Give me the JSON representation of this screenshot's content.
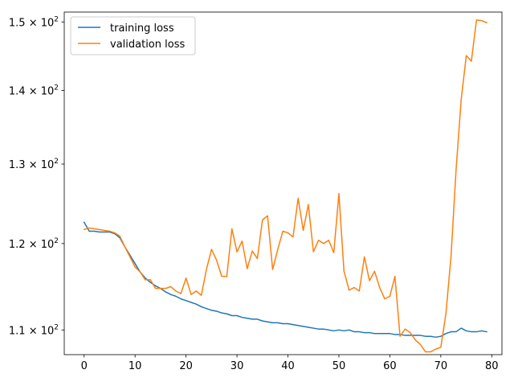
{
  "chart_data": {
    "type": "line",
    "title": "",
    "xlabel": "",
    "ylabel": "",
    "yscale": "log",
    "xlim": [
      -3.9,
      82
    ],
    "ylim": [
      107.3,
      151.5
    ],
    "grid": false,
    "legend_position": "top-left",
    "x_ticks": [
      0,
      10,
      20,
      30,
      40,
      50,
      60,
      70,
      80
    ],
    "x_tick_labels": [
      "0",
      "10",
      "20",
      "30",
      "40",
      "50",
      "60",
      "70",
      "80"
    ],
    "y_ticks": [
      110,
      120,
      130,
      140,
      150
    ],
    "y_tick_labels": [
      {
        "base": "1.1 × 10",
        "exp": "2"
      },
      {
        "base": "1.2 × 10",
        "exp": "2"
      },
      {
        "base": "1.3 × 10",
        "exp": "2"
      },
      {
        "base": "1.4 × 10",
        "exp": "2"
      },
      {
        "base": "1.5 × 10",
        "exp": "2"
      }
    ],
    "series": [
      {
        "name": "training loss",
        "color": "#1f77b4",
        "values": [
          122.6,
          121.5,
          121.5,
          121.4,
          121.4,
          121.4,
          121.2,
          120.7,
          119.6,
          118.6,
          117.6,
          116.6,
          115.9,
          115.4,
          115.0,
          114.7,
          114.3,
          114.0,
          113.8,
          113.5,
          113.3,
          113.1,
          112.9,
          112.6,
          112.4,
          112.2,
          112.1,
          111.9,
          111.8,
          111.6,
          111.6,
          111.4,
          111.3,
          111.2,
          111.2,
          111.0,
          110.9,
          110.8,
          110.8,
          110.7,
          110.7,
          110.6,
          110.5,
          110.4,
          110.3,
          110.2,
          110.1,
          110.1,
          110.0,
          109.9,
          110.0,
          109.9,
          110.0,
          109.8,
          109.8,
          109.7,
          109.7,
          109.6,
          109.6,
          109.6,
          109.6,
          109.5,
          109.5,
          109.4,
          109.4,
          109.4,
          109.4,
          109.3,
          109.3,
          109.2,
          109.3,
          109.6,
          109.8,
          109.8,
          110.2,
          109.9,
          109.8,
          109.8,
          109.9,
          109.8
        ]
      },
      {
        "name": "validation loss",
        "color": "#ff7f0e",
        "values": [
          121.7,
          121.9,
          121.8,
          121.7,
          121.6,
          121.5,
          121.3,
          120.9,
          119.6,
          118.4,
          117.2,
          116.6,
          115.7,
          115.7,
          114.7,
          114.7,
          114.7,
          114.9,
          114.4,
          114.1,
          115.9,
          114.0,
          114.4,
          113.9,
          116.9,
          119.3,
          118.0,
          116.1,
          116.1,
          121.8,
          119.0,
          120.3,
          117.0,
          119.1,
          118.2,
          122.9,
          123.4,
          116.9,
          119.3,
          121.5,
          121.3,
          120.8,
          125.6,
          121.6,
          124.8,
          119.0,
          120.4,
          120.0,
          120.4,
          118.9,
          126.2,
          116.7,
          114.5,
          114.8,
          114.4,
          118.4,
          115.6,
          116.7,
          114.8,
          113.5,
          113.8,
          116.1,
          109.3,
          110.1,
          109.7,
          108.9,
          108.4,
          107.6,
          107.6,
          107.9,
          108.1,
          111.8,
          118.4,
          129.3,
          138.7,
          145.0,
          144.2,
          150.3,
          150.2,
          149.9
        ]
      }
    ]
  }
}
